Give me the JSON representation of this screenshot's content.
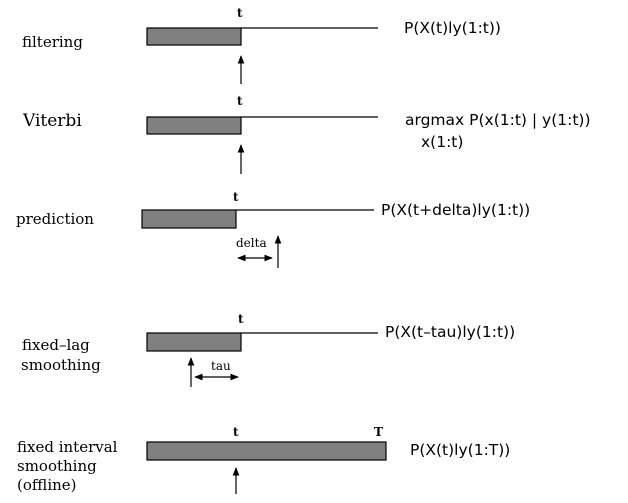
{
  "rows": {
    "filtering": {
      "label": "filtering",
      "tick": "t",
      "formula": "P(X(t)ly(1:t))"
    },
    "viterbi": {
      "label": "Viterbi",
      "tick": "t",
      "formula_line1": "argmax P(x(1:t) | y(1:t))",
      "formula_line2": "x(1:t)"
    },
    "prediction": {
      "label": "prediction",
      "tick": "t",
      "offset_label": "delta",
      "formula": "P(X(t+delta)ly(1:t))"
    },
    "fixed_lag": {
      "label_line1": "fixed–lag",
      "label_line2": "smoothing",
      "tick": "t",
      "offset_label": "tau",
      "formula": "P(X(t–tau)ly(1:t))"
    },
    "fixed_interval": {
      "label_line1": "fixed interval",
      "label_line2": "smoothing",
      "label_line3": "(offline)",
      "tick": "t",
      "end_tick": "T",
      "formula": "P(X(t)ly(1:T))"
    }
  }
}
